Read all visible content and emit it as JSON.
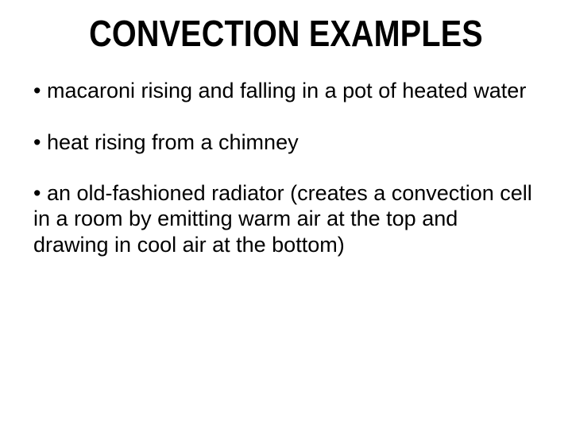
{
  "title": "CONVECTION EXAMPLES",
  "bullets": [
    "• macaroni rising and falling in a pot of heated water",
    "• heat rising from a chimney",
    "• an old-fashioned radiator (creates a convection cell in a room by emitting warm air at the top and drawing in cool air at the bottom)"
  ],
  "style": {
    "background_color": "#ffffff",
    "text_color": "#000000",
    "title_fontsize": 46,
    "title_weight": 900,
    "body_fontsize": 27,
    "body_font_family": "Arial"
  }
}
